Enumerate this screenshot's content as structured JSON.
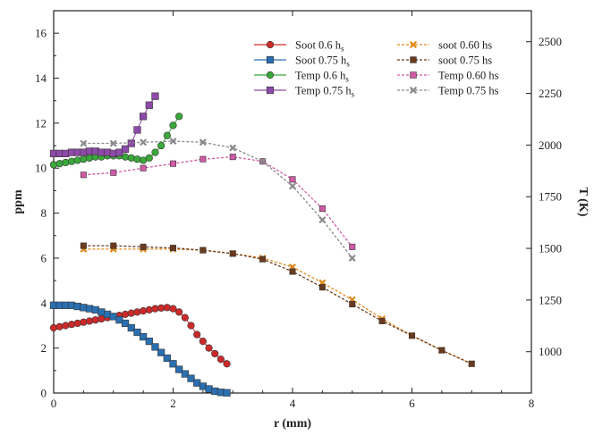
{
  "chart_data": {
    "type": "line",
    "title": "",
    "xlabel": "r (mm)",
    "ylabel": "ppm",
    "y2label": "T (K)",
    "xlim": [
      0,
      8
    ],
    "ylim": [
      0,
      17
    ],
    "y2lim": [
      800,
      2650
    ],
    "x_ticks": [
      0,
      2,
      4,
      6,
      8
    ],
    "y_ticks": [
      0,
      2,
      4,
      6,
      8,
      10,
      12,
      14,
      16
    ],
    "y2_ticks": [
      1000,
      1250,
      1500,
      1750,
      2000,
      2250,
      2500
    ],
    "grid": false,
    "legend_position": "top-right",
    "series": [
      {
        "name": "Soot 0.6 h",
        "name_subscript": "s",
        "axis": "left",
        "color": "#cc2a2a",
        "marker": "circle",
        "line": "solid",
        "x": [
          0,
          0.1,
          0.2,
          0.3,
          0.4,
          0.5,
          0.6,
          0.7,
          0.8,
          0.9,
          1.0,
          1.1,
          1.2,
          1.3,
          1.4,
          1.5,
          1.6,
          1.7,
          1.8,
          1.9,
          2.0,
          2.1,
          2.2,
          2.3,
          2.4,
          2.5,
          2.6,
          2.7,
          2.8,
          2.9
        ],
        "y": [
          2.9,
          2.95,
          3.0,
          3.05,
          3.1,
          3.15,
          3.2,
          3.25,
          3.3,
          3.35,
          3.4,
          3.45,
          3.5,
          3.55,
          3.6,
          3.65,
          3.7,
          3.75,
          3.78,
          3.8,
          3.75,
          3.6,
          3.35,
          3.0,
          2.6,
          2.3,
          2.0,
          1.75,
          1.5,
          1.3
        ]
      },
      {
        "name": "Soot 0.75 h",
        "name_subscript": "s",
        "axis": "left",
        "color": "#2a6fb0",
        "marker": "square",
        "line": "solid",
        "x": [
          0,
          0.1,
          0.2,
          0.3,
          0.4,
          0.5,
          0.6,
          0.7,
          0.8,
          0.9,
          1.0,
          1.1,
          1.2,
          1.3,
          1.4,
          1.5,
          1.6,
          1.7,
          1.8,
          1.9,
          2.0,
          2.1,
          2.2,
          2.3,
          2.4,
          2.5,
          2.6,
          2.7,
          2.8,
          2.9
        ],
        "y": [
          3.9,
          3.9,
          3.9,
          3.9,
          3.85,
          3.8,
          3.75,
          3.7,
          3.6,
          3.5,
          3.4,
          3.25,
          3.1,
          2.9,
          2.7,
          2.5,
          2.3,
          2.05,
          1.8,
          1.55,
          1.3,
          1.05,
          0.85,
          0.65,
          0.45,
          0.3,
          0.18,
          0.08,
          0.03,
          0.01
        ]
      },
      {
        "name": "Temp 0.6 h",
        "name_subscript": "s",
        "axis": "left",
        "color": "#3aa83a",
        "marker": "circle",
        "line": "solid",
        "x": [
          0,
          0.1,
          0.2,
          0.3,
          0.4,
          0.5,
          0.6,
          0.7,
          0.8,
          0.9,
          1.0,
          1.1,
          1.2,
          1.3,
          1.4,
          1.5,
          1.6,
          1.7,
          1.8,
          1.9,
          2.0,
          2.1
        ],
        "y": [
          10.15,
          10.2,
          10.25,
          10.3,
          10.35,
          10.4,
          10.45,
          10.5,
          10.5,
          10.55,
          10.55,
          10.55,
          10.5,
          10.45,
          10.4,
          10.35,
          10.45,
          10.7,
          11.0,
          11.45,
          11.9,
          12.3
        ]
      },
      {
        "name": "Temp 0.75 h",
        "name_subscript": "s",
        "axis": "left",
        "color": "#8e4aa8",
        "marker": "square",
        "line": "solid",
        "x": [
          0,
          0.1,
          0.2,
          0.3,
          0.4,
          0.5,
          0.6,
          0.7,
          0.8,
          0.9,
          1.0,
          1.1,
          1.2,
          1.3,
          1.4,
          1.5,
          1.6,
          1.7
        ],
        "y": [
          10.65,
          10.65,
          10.65,
          10.7,
          10.7,
          10.7,
          10.75,
          10.75,
          10.7,
          10.7,
          10.65,
          10.7,
          10.85,
          11.1,
          11.7,
          12.3,
          12.8,
          13.2
        ]
      },
      {
        "name": "soot 0.60 hs",
        "axis": "left",
        "color": "#e08a1a",
        "marker": "x",
        "line": "dashed",
        "x": [
          0.5,
          1.0,
          1.5,
          2.0,
          2.5,
          3.0,
          3.5,
          4.0,
          4.5,
          5.0,
          5.5,
          6.0,
          6.5,
          7.0
        ],
        "y": [
          6.4,
          6.4,
          6.4,
          6.4,
          6.35,
          6.2,
          6.0,
          5.6,
          4.9,
          4.15,
          3.3,
          2.55,
          1.9,
          1.3
        ]
      },
      {
        "name": "soot  0.75 hs",
        "axis": "left",
        "color": "#6b3a1e",
        "marker": "square",
        "line": "dashed",
        "x": [
          0.5,
          1.0,
          1.5,
          2.0,
          2.5,
          3.0,
          3.5,
          4.0,
          4.5,
          5.0,
          5.5,
          6.0,
          6.5,
          7.0
        ],
        "y": [
          6.55,
          6.55,
          6.5,
          6.45,
          6.35,
          6.2,
          5.95,
          5.4,
          4.7,
          3.95,
          3.2,
          2.55,
          1.9,
          1.3
        ]
      },
      {
        "name": "Temp  0.60 hs",
        "axis": "left",
        "color": "#d05aa6",
        "marker": "square",
        "line": "dashed",
        "x": [
          0.5,
          1.0,
          1.5,
          2.0,
          2.5,
          3.0,
          3.5,
          4.0,
          4.5,
          5.0
        ],
        "y": [
          9.7,
          9.8,
          10.0,
          10.2,
          10.4,
          10.5,
          10.3,
          9.5,
          8.2,
          6.5
        ]
      },
      {
        "name": "Temp  0.75 hs",
        "axis": "left",
        "color": "#8a8a8a",
        "marker": "x",
        "line": "dashed",
        "x": [
          0.5,
          1.0,
          1.5,
          2.0,
          2.5,
          3.0,
          3.5,
          4.0,
          4.5,
          5.0
        ],
        "y": [
          11.1,
          11.1,
          11.15,
          11.2,
          11.15,
          10.9,
          10.3,
          9.2,
          7.7,
          6.0
        ]
      }
    ]
  }
}
